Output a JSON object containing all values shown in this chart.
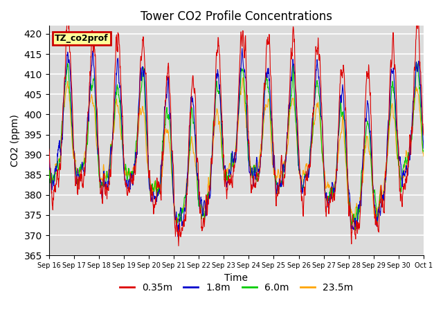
{
  "title": "Tower CO2 Profile Concentrations",
  "xlabel": "Time",
  "ylabel": "CO2 (ppm)",
  "ylim": [
    365,
    422
  ],
  "yticks": [
    365,
    370,
    375,
    380,
    385,
    390,
    395,
    400,
    405,
    410,
    415,
    420
  ],
  "annotation_text": "TZ_co2prof",
  "annotation_bg": "#FFFF99",
  "annotation_edge": "#CC0000",
  "bg_color": "#DCDCDC",
  "legend_labels": [
    "0.35m",
    "1.8m",
    "6.0m",
    "23.5m"
  ],
  "line_colors": [
    "#DD0000",
    "#0000CC",
    "#00CC00",
    "#FFA500"
  ],
  "line_width": 0.8,
  "n_days": 15,
  "n_pts_per_day": 96,
  "base_mean": 390,
  "seed": 42,
  "figsize": [
    6.4,
    4.8
  ],
  "dpi": 100
}
